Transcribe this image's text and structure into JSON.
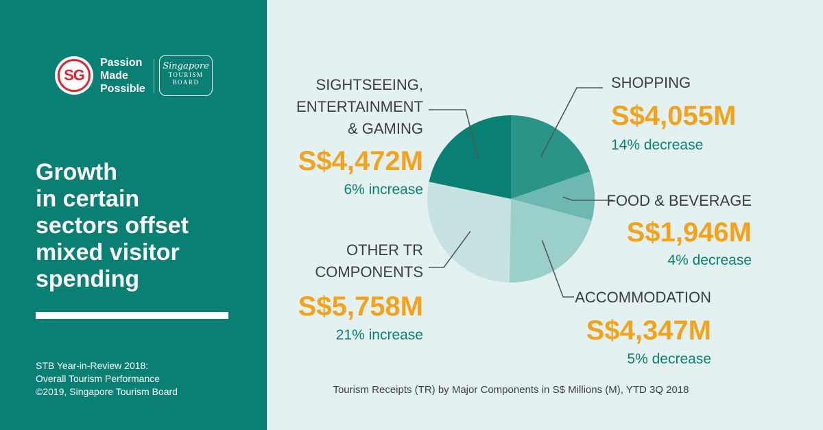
{
  "brand": {
    "sg_mark": "SG",
    "tagline": [
      "Passion",
      "Made",
      "Possible"
    ],
    "stb_script": "Singapore",
    "stb_caps": [
      "TOURISM",
      "BOARD"
    ]
  },
  "headline": [
    "Growth",
    "in certain",
    "sectors offset",
    "mixed visitor",
    "spending"
  ],
  "credits": [
    "STB Year-in-Review 2018:",
    "Overall Tourism Performance",
    "©2019, Singapore Tourism Board"
  ],
  "chart_data": {
    "type": "pie",
    "title": "",
    "caption": "Tourism Receipts (TR) by Major Components in S$ Millions (M), YTD 3Q 2018",
    "units": "S$ Millions",
    "slices": [
      {
        "name": "SHOPPING",
        "label_lines": [
          "SHOPPING"
        ],
        "value": 4055,
        "value_label": "S$4,055M",
        "change": "14% decrease",
        "color": "#2b9489"
      },
      {
        "name": "FOOD & BEVERAGE",
        "label_lines": [
          "FOOD & BEVERAGE"
        ],
        "value": 1946,
        "value_label": "S$1,946M",
        "change": "4% decrease",
        "color": "#6db9b2"
      },
      {
        "name": "ACCOMMODATION",
        "label_lines": [
          "ACCOMMODATION"
        ],
        "value": 4347,
        "value_label": "S$4,347M",
        "change": "5% decrease",
        "color": "#9bcfca"
      },
      {
        "name": "OTHER TR COMPONENTS",
        "label_lines": [
          "OTHER TR",
          "COMPONENTS"
        ],
        "value": 5758,
        "value_label": "S$5,758M",
        "change": "21% increase",
        "color": "#c6e3e1"
      },
      {
        "name": "SIGHTSEEING, ENTERTAINMENT & GAMING",
        "label_lines": [
          "SIGHTSEEING,",
          "ENTERTAINMENT",
          "& GAMING"
        ],
        "value": 4472,
        "value_label": "S$4,472M",
        "change": "6% increase",
        "color": "#0a8074"
      }
    ]
  }
}
